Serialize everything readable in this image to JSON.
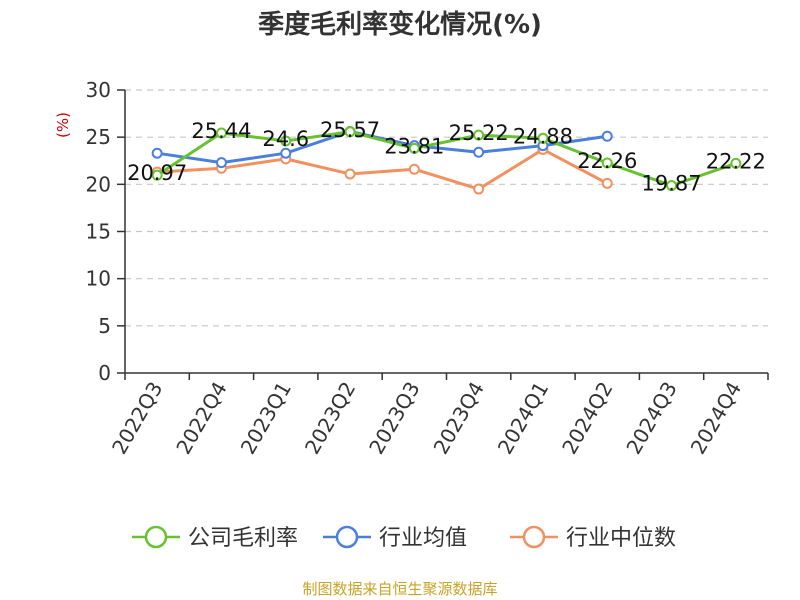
{
  "chart_data": {
    "type": "line",
    "title": "季度毛利率变化情况(%)",
    "ylabel": "(%)",
    "xlabel": "",
    "ylim": [
      0,
      30
    ],
    "yticks": [
      0,
      5,
      10,
      15,
      20,
      25,
      30
    ],
    "grid": true,
    "legend_position": "bottom",
    "categories": [
      "2022Q3",
      "2022Q4",
      "2023Q1",
      "2023Q2",
      "2023Q3",
      "2023Q4",
      "2024Q1",
      "2024Q2",
      "2024Q3",
      "2024Q4"
    ],
    "series": [
      {
        "name": "公司毛利率",
        "color": "#66c22e",
        "values": [
          20.97,
          25.44,
          24.6,
          25.57,
          23.81,
          25.22,
          24.88,
          22.26,
          19.87,
          22.22
        ],
        "labels": [
          "20.97",
          "25.44",
          "24.6",
          "25.57",
          "23.81",
          "25.22",
          "24.88",
          "22.26",
          "19.87",
          "22.22"
        ]
      },
      {
        "name": "行业均值",
        "color": "#4a7fdc",
        "values": [
          23.3,
          22.3,
          23.3,
          25.6,
          24.1,
          23.4,
          24.1,
          25.1,
          null,
          null
        ]
      },
      {
        "name": "行业中位数",
        "color": "#f39060",
        "values": [
          21.3,
          21.7,
          22.7,
          21.1,
          21.6,
          19.5,
          23.7,
          20.1,
          null,
          null
        ]
      }
    ],
    "source": "制图数据来自恒生聚源数据库"
  }
}
